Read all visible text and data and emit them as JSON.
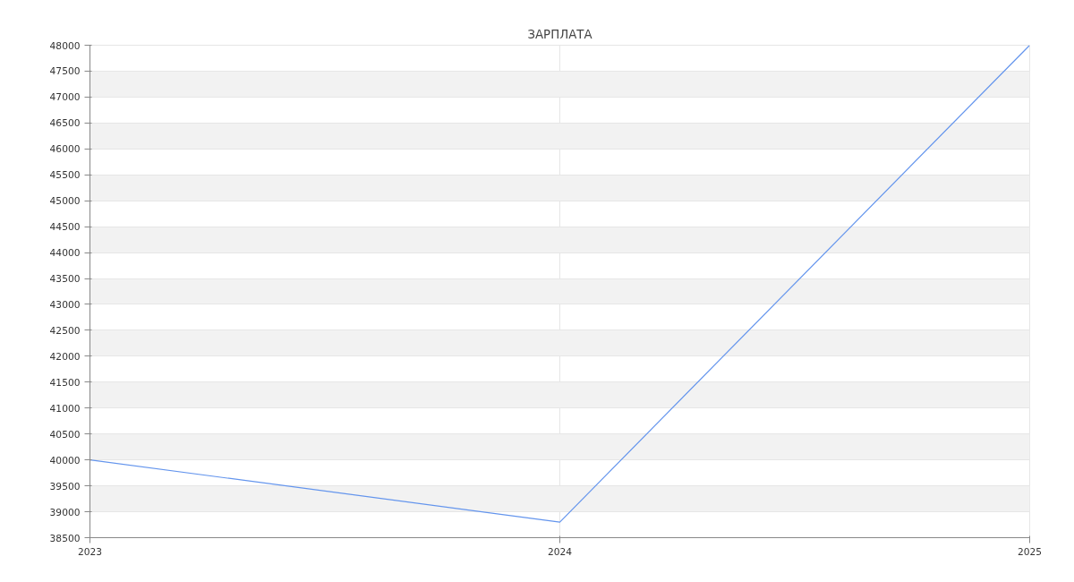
{
  "chart_data": {
    "type": "line",
    "title": "ЗАРПЛАТА",
    "x": [
      2023,
      2024,
      2025
    ],
    "series": [
      {
        "color": "#6495ed",
        "values": [
          40000,
          38800,
          48000
        ]
      }
    ],
    "xlim": [
      2023,
      2025
    ],
    "xticks": [
      2023,
      2024,
      2025
    ],
    "ylim": [
      38500,
      48000
    ],
    "yticks": [
      38500,
      39000,
      39500,
      40000,
      40500,
      41000,
      41500,
      42000,
      42500,
      43000,
      43500,
      44000,
      44500,
      45000,
      45500,
      46000,
      46500,
      47000,
      47500,
      48000
    ],
    "grid": true,
    "marker": "none",
    "line_style": "solid"
  }
}
